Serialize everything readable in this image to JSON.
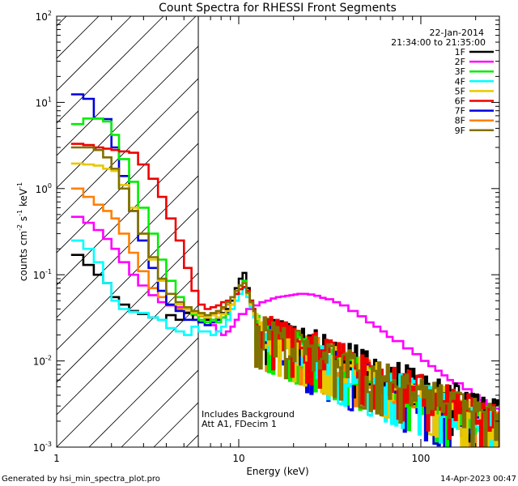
{
  "chart_data": {
    "type": "line",
    "title": "Count Spectra for RHESSI Front Segments",
    "xlabel": "Energy (keV)",
    "ylabel_parts": [
      "counts cm",
      "-2",
      " s",
      "-1",
      " keV",
      "-1"
    ],
    "xscale": "log",
    "yscale": "log",
    "xlim": [
      1,
      270
    ],
    "ylim": [
      0.001,
      100
    ],
    "x_ticks": [
      {
        "value": 1,
        "label": "1"
      },
      {
        "value": 10,
        "label": "10"
      },
      {
        "value": 100,
        "label": "100"
      }
    ],
    "y_ticks": [
      {
        "value": 0.001,
        "base": "10",
        "exp": "-3"
      },
      {
        "value": 0.01,
        "base": "10",
        "exp": "-2"
      },
      {
        "value": 0.1,
        "base": "10",
        "exp": "-1"
      },
      {
        "value": 1,
        "base": "10",
        "exp": "0"
      },
      {
        "value": 10,
        "base": "10",
        "exp": "1"
      },
      {
        "value": 100,
        "base": "10",
        "exp": "2"
      }
    ],
    "date": "22-Jan-2014",
    "time_range": "21:34:00 to 21:35:00",
    "shaded_region": {
      "from": 1,
      "to": 6,
      "style": "diagonal hatching"
    },
    "annotation_lines": [
      "Includes Background",
      "Att A1, FDecim  1"
    ],
    "footer_left": "Generated by hsi_min_spectra_plot.pro",
    "footer_right": "14-Apr-2023 00:47",
    "series": [
      {
        "name": "1F",
        "color": "#000000",
        "low": [
          [
            1.2,
            0.17
          ],
          [
            1.4,
            0.13
          ],
          [
            1.6,
            0.1
          ],
          [
            1.8,
            0.08
          ],
          [
            2.0,
            0.055
          ],
          [
            2.2,
            0.045
          ],
          [
            2.5,
            0.038
          ],
          [
            2.8,
            0.035
          ],
          [
            3.2,
            0.032
          ],
          [
            3.6,
            0.03
          ],
          [
            4.0,
            0.034
          ],
          [
            4.5,
            0.03
          ],
          [
            5.0,
            0.036
          ],
          [
            5.6,
            0.03
          ],
          [
            6.0,
            0.034
          ],
          [
            6.5,
            0.03
          ],
          [
            7.0,
            0.035
          ],
          [
            7.5,
            0.03
          ],
          [
            8.0,
            0.036
          ],
          [
            8.5,
            0.04
          ],
          [
            9.0,
            0.05
          ],
          [
            9.5,
            0.07
          ],
          [
            10.0,
            0.09
          ],
          [
            10.5,
            0.105
          ],
          [
            11.0,
            0.07
          ],
          [
            11.5,
            0.05
          ],
          [
            12.0,
            0.04
          ]
        ],
        "tail": [
          12,
          300,
          0.03,
          0.0022
        ]
      },
      {
        "name": "2F",
        "color": "#ff00ff",
        "low": [
          [
            1.2,
            0.47
          ],
          [
            1.4,
            0.4
          ],
          [
            1.6,
            0.33
          ],
          [
            1.8,
            0.26
          ],
          [
            2.0,
            0.2
          ],
          [
            2.2,
            0.14
          ],
          [
            2.5,
            0.1
          ],
          [
            2.8,
            0.075
          ],
          [
            3.2,
            0.058
          ],
          [
            3.6,
            0.048
          ],
          [
            4.0,
            0.044
          ],
          [
            4.5,
            0.042
          ],
          [
            5.0,
            0.04
          ],
          [
            5.5,
            0.035
          ],
          [
            6.0,
            0.03
          ],
          [
            6.5,
            0.03
          ]
        ],
        "tail": [
          6.5,
          300,
          0,
          0
        ],
        "points": [
          [
            6.5,
            0.03
          ],
          [
            7.0,
            0.026
          ],
          [
            7.5,
            0.022
          ],
          [
            8.0,
            0.02
          ],
          [
            8.5,
            0.022
          ],
          [
            9.0,
            0.025
          ],
          [
            9.5,
            0.03
          ],
          [
            10.0,
            0.035
          ],
          [
            11,
            0.04
          ],
          [
            12,
            0.044
          ],
          [
            13,
            0.048
          ],
          [
            14,
            0.05
          ],
          [
            15,
            0.053
          ],
          [
            16,
            0.055
          ],
          [
            17,
            0.056
          ],
          [
            18,
            0.057
          ],
          [
            19,
            0.058
          ],
          [
            20,
            0.059
          ],
          [
            21,
            0.06
          ],
          [
            22,
            0.06
          ],
          [
            24,
            0.059
          ],
          [
            26,
            0.057
          ],
          [
            28,
            0.054
          ],
          [
            30,
            0.052
          ],
          [
            33,
            0.048
          ],
          [
            36,
            0.044
          ],
          [
            40,
            0.038
          ],
          [
            45,
            0.033
          ],
          [
            50,
            0.028
          ],
          [
            55,
            0.025
          ],
          [
            60,
            0.022
          ],
          [
            65,
            0.019
          ],
          [
            70,
            0.017
          ],
          [
            80,
            0.014
          ],
          [
            90,
            0.012
          ],
          [
            100,
            0.01
          ],
          [
            110,
            0.0087
          ],
          [
            120,
            0.0077
          ],
          [
            130,
            0.0068
          ],
          [
            140,
            0.006
          ],
          [
            150,
            0.0055
          ],
          [
            170,
            0.0047
          ],
          [
            190,
            0.004
          ],
          [
            210,
            0.0035
          ],
          [
            230,
            0.0031
          ],
          [
            250,
            0.0028
          ],
          [
            270,
            0.0026
          ]
        ]
      },
      {
        "name": "3F",
        "color": "#00ee00",
        "low": [
          [
            1.2,
            5.6
          ],
          [
            1.4,
            6.5
          ],
          [
            1.6,
            6.5
          ],
          [
            1.8,
            6.0
          ],
          [
            2.0,
            4.2
          ],
          [
            2.2,
            2.2
          ],
          [
            2.5,
            1.2
          ],
          [
            2.8,
            0.6
          ],
          [
            3.2,
            0.3
          ],
          [
            3.6,
            0.15
          ],
          [
            4.0,
            0.085
          ],
          [
            4.5,
            0.055
          ],
          [
            5.0,
            0.042
          ],
          [
            5.5,
            0.035
          ],
          [
            6.0,
            0.03
          ],
          [
            6.5,
            0.028
          ],
          [
            7.0,
            0.03
          ],
          [
            7.5,
            0.028
          ],
          [
            8.0,
            0.032
          ],
          [
            8.5,
            0.035
          ],
          [
            9.0,
            0.045
          ],
          [
            9.5,
            0.06
          ],
          [
            10.0,
            0.075
          ],
          [
            10.5,
            0.085
          ],
          [
            11.0,
            0.06
          ],
          [
            11.5,
            0.045
          ],
          [
            12.0,
            0.035
          ]
        ],
        "tail": [
          12,
          300,
          0.025,
          0.0015
        ]
      },
      {
        "name": "4F",
        "color": "#00ffff",
        "low": [
          [
            1.2,
            0.25
          ],
          [
            1.4,
            0.2
          ],
          [
            1.6,
            0.14
          ],
          [
            1.8,
            0.08
          ],
          [
            2.0,
            0.05
          ],
          [
            2.2,
            0.04
          ],
          [
            2.5,
            0.037
          ],
          [
            2.8,
            0.036
          ],
          [
            3.2,
            0.032
          ],
          [
            3.6,
            0.03
          ],
          [
            4.0,
            0.024
          ],
          [
            4.5,
            0.022
          ],
          [
            5.0,
            0.02
          ],
          [
            5.5,
            0.025
          ],
          [
            6.0,
            0.022
          ],
          [
            6.5,
            0.022
          ],
          [
            7.0,
            0.02
          ],
          [
            7.5,
            0.022
          ],
          [
            8.0,
            0.025
          ],
          [
            8.5,
            0.03
          ],
          [
            9.0,
            0.04
          ],
          [
            9.5,
            0.05
          ],
          [
            10.0,
            0.06
          ],
          [
            10.5,
            0.07
          ],
          [
            11.0,
            0.055
          ],
          [
            11.5,
            0.042
          ],
          [
            12.0,
            0.032
          ]
        ],
        "tail": [
          12,
          300,
          0.022,
          0.0016
        ]
      },
      {
        "name": "5F",
        "color": "#e8c800",
        "low": [
          [
            1.2,
            1.95
          ],
          [
            1.4,
            1.9
          ],
          [
            1.6,
            1.85
          ],
          [
            1.8,
            1.7
          ],
          [
            2.0,
            1.6
          ],
          [
            2.2,
            1.1
          ],
          [
            2.5,
            0.6
          ],
          [
            2.8,
            0.3
          ],
          [
            3.2,
            0.15
          ],
          [
            3.6,
            0.085
          ],
          [
            4.0,
            0.06
          ],
          [
            4.5,
            0.045
          ],
          [
            5.0,
            0.04
          ],
          [
            5.5,
            0.036
          ],
          [
            6.0,
            0.034
          ],
          [
            6.5,
            0.032
          ],
          [
            7.0,
            0.034
          ],
          [
            7.5,
            0.032
          ],
          [
            8.0,
            0.035
          ],
          [
            8.5,
            0.038
          ],
          [
            9.0,
            0.045
          ],
          [
            9.5,
            0.06
          ],
          [
            10.0,
            0.075
          ],
          [
            10.5,
            0.08
          ],
          [
            11.0,
            0.06
          ],
          [
            11.5,
            0.045
          ],
          [
            12.0,
            0.035
          ]
        ],
        "tail": [
          12,
          300,
          0.025,
          0.0018
        ]
      },
      {
        "name": "6F",
        "color": "#ee0000",
        "low": [
          [
            1.2,
            3.3
          ],
          [
            1.4,
            3.2
          ],
          [
            1.6,
            3.0
          ],
          [
            1.8,
            2.9
          ],
          [
            2.0,
            2.8
          ],
          [
            2.2,
            2.7
          ],
          [
            2.5,
            2.6
          ],
          [
            2.8,
            1.9
          ],
          [
            3.2,
            1.3
          ],
          [
            3.6,
            0.8
          ],
          [
            4.0,
            0.45
          ],
          [
            4.5,
            0.25
          ],
          [
            5.0,
            0.12
          ],
          [
            5.5,
            0.065
          ],
          [
            6.0,
            0.045
          ],
          [
            6.5,
            0.04
          ],
          [
            7.0,
            0.042
          ],
          [
            7.5,
            0.044
          ],
          [
            8.0,
            0.048
          ],
          [
            8.5,
            0.05
          ],
          [
            9.0,
            0.055
          ],
          [
            9.5,
            0.06
          ],
          [
            10.0,
            0.068
          ],
          [
            10.5,
            0.072
          ],
          [
            11.0,
            0.065
          ],
          [
            11.5,
            0.05
          ],
          [
            12.0,
            0.04
          ]
        ],
        "tail": [
          12,
          300,
          0.028,
          0.0019
        ]
      },
      {
        "name": "7F",
        "color": "#0000dd",
        "low": [
          [
            1.2,
            12.4
          ],
          [
            1.4,
            11.0
          ],
          [
            1.6,
            6.5
          ],
          [
            1.8,
            6.4
          ],
          [
            2.0,
            3.0
          ],
          [
            2.2,
            1.4
          ],
          [
            2.5,
            0.55
          ],
          [
            2.8,
            0.25
          ],
          [
            3.2,
            0.12
          ],
          [
            3.6,
            0.065
          ],
          [
            4.0,
            0.045
          ],
          [
            4.5,
            0.038
          ],
          [
            5.0,
            0.03
          ],
          [
            5.5,
            0.03
          ],
          [
            6.0,
            0.028
          ],
          [
            6.5,
            0.026
          ],
          [
            7.0,
            0.028
          ],
          [
            7.5,
            0.03
          ],
          [
            8.0,
            0.032
          ],
          [
            8.5,
            0.036
          ],
          [
            9.0,
            0.045
          ],
          [
            9.5,
            0.06
          ],
          [
            10.0,
            0.075
          ],
          [
            10.5,
            0.085
          ],
          [
            11.0,
            0.06
          ],
          [
            11.5,
            0.045
          ],
          [
            12.0,
            0.035
          ]
        ],
        "tail": [
          12,
          300,
          0.022,
          0.0014
        ]
      },
      {
        "name": "8F",
        "color": "#ff8000",
        "low": [
          [
            1.2,
            1.0
          ],
          [
            1.4,
            0.8
          ],
          [
            1.6,
            0.65
          ],
          [
            1.8,
            0.55
          ],
          [
            2.0,
            0.45
          ],
          [
            2.2,
            0.3
          ],
          [
            2.5,
            0.18
          ],
          [
            2.8,
            0.11
          ],
          [
            3.2,
            0.07
          ],
          [
            3.6,
            0.055
          ],
          [
            4.0,
            0.045
          ],
          [
            4.5,
            0.04
          ],
          [
            5.0,
            0.037
          ],
          [
            5.5,
            0.034
          ],
          [
            6.0,
            0.033
          ],
          [
            6.5,
            0.032
          ],
          [
            7.0,
            0.034
          ],
          [
            7.5,
            0.036
          ],
          [
            8.0,
            0.04
          ],
          [
            8.5,
            0.045
          ],
          [
            9.0,
            0.05
          ],
          [
            9.5,
            0.06
          ],
          [
            10.0,
            0.068
          ],
          [
            10.5,
            0.072
          ],
          [
            11.0,
            0.06
          ],
          [
            11.5,
            0.045
          ],
          [
            12.0,
            0.036
          ]
        ],
        "tail": [
          12,
          300,
          0.025,
          0.0017
        ]
      },
      {
        "name": "9F",
        "color": "#807000",
        "low": [
          [
            1.2,
            3.0
          ],
          [
            1.4,
            3.0
          ],
          [
            1.6,
            2.8
          ],
          [
            1.8,
            2.3
          ],
          [
            2.0,
            1.7
          ],
          [
            2.2,
            1.0
          ],
          [
            2.5,
            0.55
          ],
          [
            2.8,
            0.3
          ],
          [
            3.2,
            0.16
          ],
          [
            3.6,
            0.09
          ],
          [
            4.0,
            0.06
          ],
          [
            4.5,
            0.048
          ],
          [
            5.0,
            0.042
          ],
          [
            5.5,
            0.038
          ],
          [
            6.0,
            0.036
          ],
          [
            6.5,
            0.034
          ],
          [
            7.0,
            0.036
          ],
          [
            7.5,
            0.038
          ],
          [
            8.0,
            0.042
          ],
          [
            8.5,
            0.048
          ],
          [
            9.0,
            0.055
          ],
          [
            9.5,
            0.065
          ],
          [
            10.0,
            0.075
          ],
          [
            10.5,
            0.08
          ],
          [
            11.0,
            0.062
          ],
          [
            11.5,
            0.048
          ],
          [
            12.0,
            0.038
          ]
        ],
        "tail": [
          12,
          300,
          0.025,
          0.0018
        ]
      }
    ]
  }
}
